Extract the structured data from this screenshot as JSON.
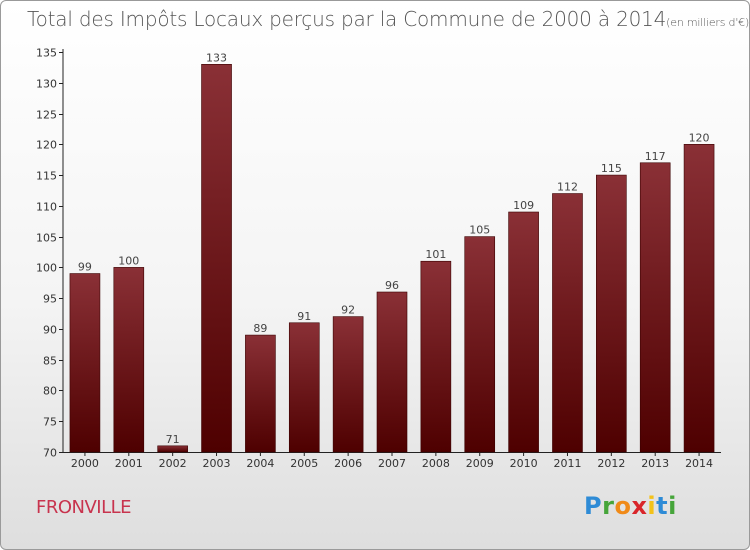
{
  "title": {
    "main": "Total des Impôts Locaux perçus par la Commune de 2000 à 2014",
    "unit": "(en milliers d'€)"
  },
  "commune": "FRONVILLE",
  "logo": {
    "letters": [
      "P",
      "r",
      "o",
      "x",
      "i",
      "t",
      "i"
    ],
    "colors": [
      "#2e8bd6",
      "#46a53a",
      "#f08a18",
      "#d9252a",
      "#f3c21a",
      "#2e8bd6",
      "#46a53a"
    ]
  },
  "chart_data": {
    "type": "bar",
    "categories": [
      "2000",
      "2001",
      "2002",
      "2003",
      "2004",
      "2005",
      "2006",
      "2007",
      "2008",
      "2009",
      "2010",
      "2011",
      "2012",
      "2013",
      "2014"
    ],
    "values": [
      99,
      100,
      71,
      133,
      89,
      91,
      92,
      96,
      101,
      105,
      109,
      112,
      115,
      117,
      120
    ],
    "ylim": [
      70,
      135
    ],
    "yticks": [
      70,
      75,
      80,
      85,
      90,
      95,
      100,
      105,
      110,
      115,
      120,
      125,
      130,
      135
    ],
    "bar_color_top": "#8a3036",
    "bar_color_bottom": "#4e0000",
    "data_labels": true,
    "grid": false
  }
}
